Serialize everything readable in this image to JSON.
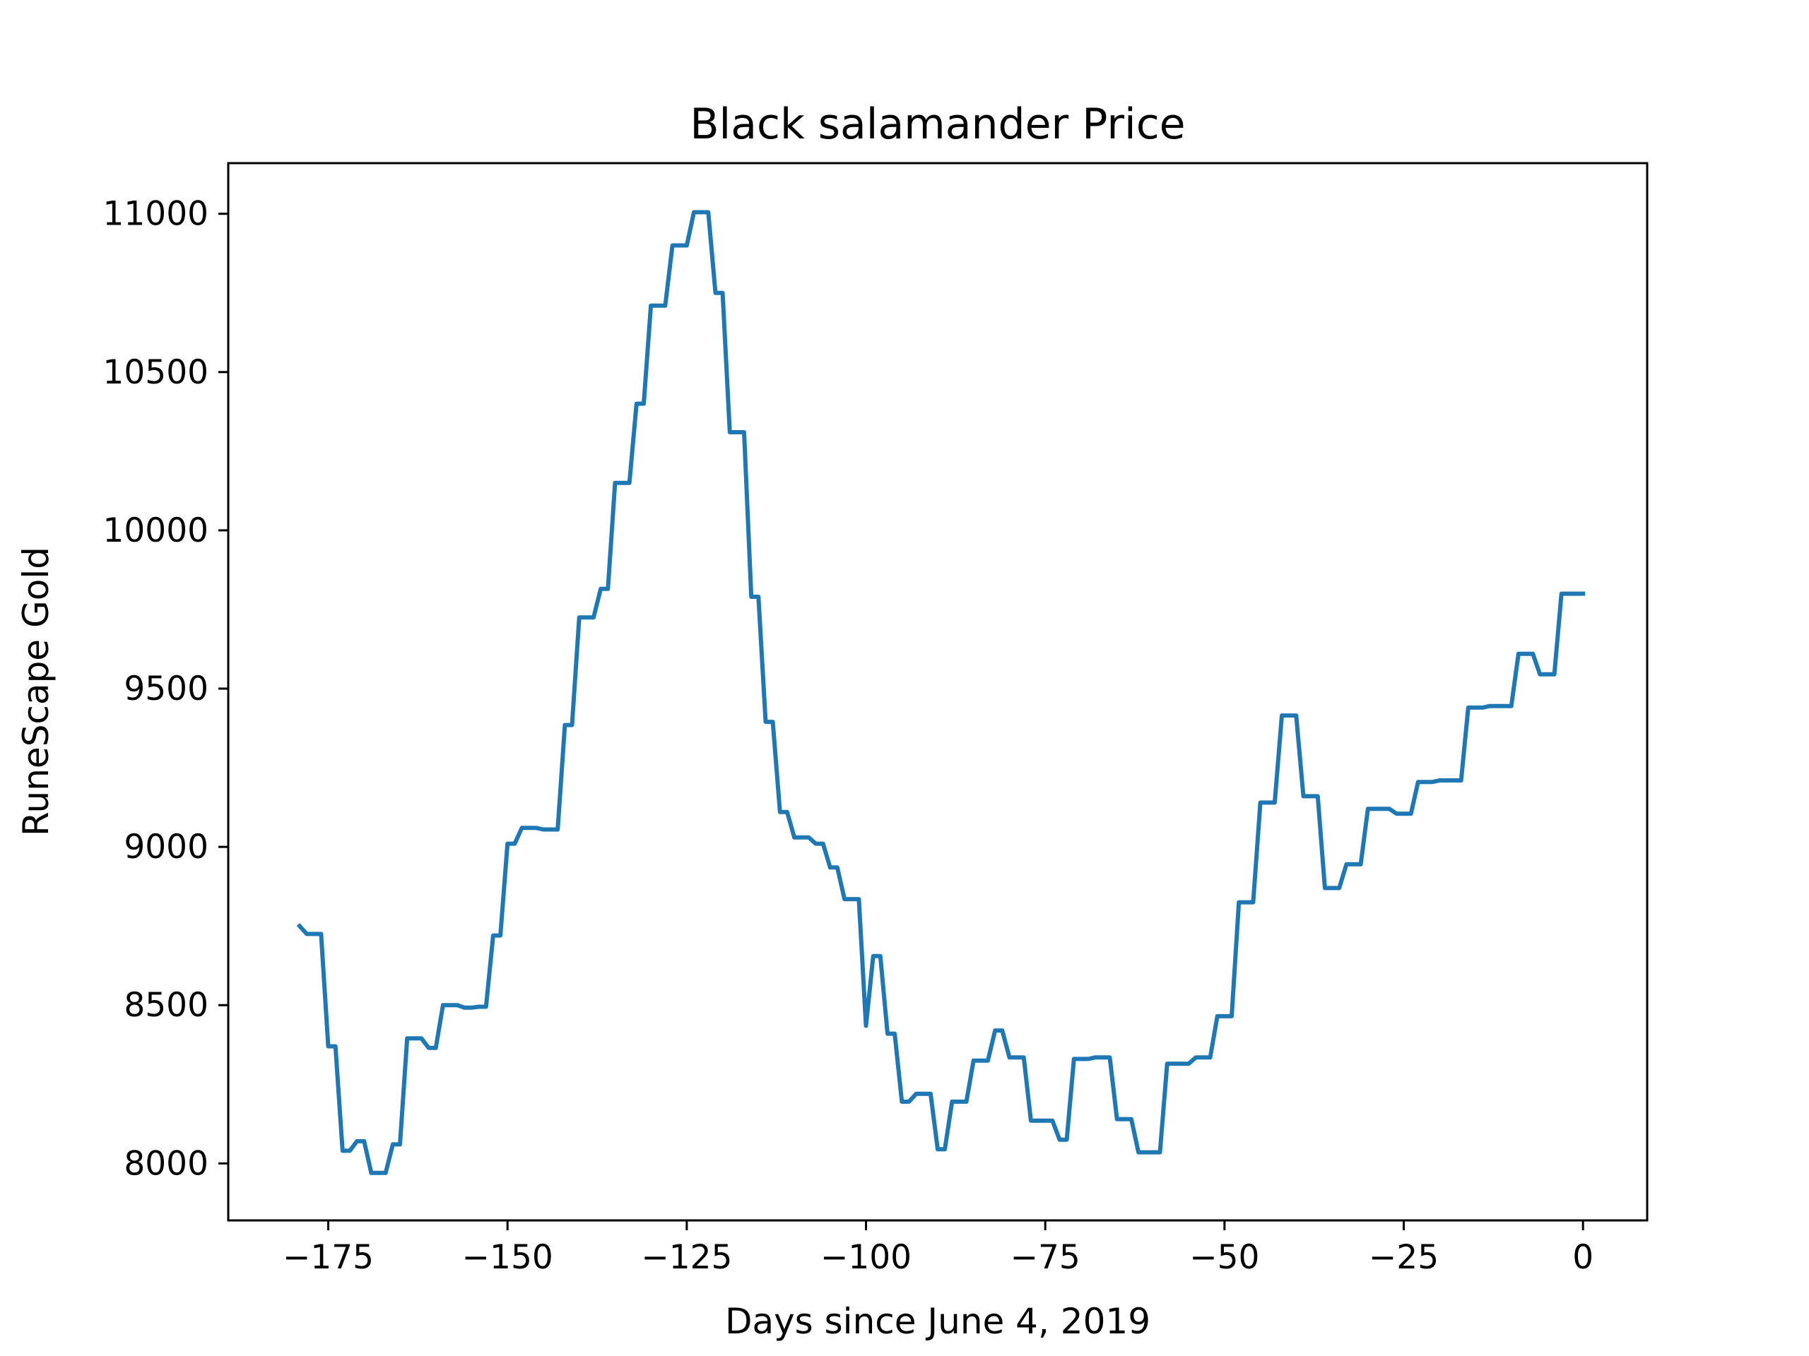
{
  "colors": {
    "line": "#1f77b4",
    "axes": "#000000",
    "background": "#ffffff"
  },
  "chart_data": {
    "type": "line",
    "title": "Black salamander Price",
    "xlabel": "Days since June 4, 2019",
    "ylabel": "RuneScape Gold",
    "xlim": [
      -188.95,
      8.95
    ],
    "ylim": [
      7820,
      11160
    ],
    "xticks": [
      -175,
      -150,
      -125,
      -100,
      -75,
      -50,
      -25,
      0
    ],
    "xtick_labels": [
      "−175",
      "−150",
      "−125",
      "−100",
      "−75",
      "−50",
      "−25",
      "0"
    ],
    "yticks": [
      8000,
      8500,
      9000,
      9500,
      10000,
      10500,
      11000
    ],
    "ytick_labels": [
      "8000",
      "8500",
      "9000",
      "9500",
      "10000",
      "10500",
      "11000"
    ],
    "grid": false,
    "legend": "none",
    "series": [
      {
        "x": [
          -179,
          -178,
          -177,
          -176,
          -175,
          -174,
          -173,
          -172,
          -171,
          -170,
          -169,
          -168,
          -167,
          -166,
          -165,
          -164,
          -163,
          -162,
          -161,
          -160,
          -159,
          -158,
          -157,
          -156,
          -155,
          -154,
          -153,
          -152,
          -151,
          -150,
          -149,
          -148,
          -147,
          -146,
          -145,
          -144,
          -143,
          -142,
          -141,
          -140,
          -139,
          -138,
          -137,
          -136,
          -135,
          -134,
          -133,
          -132,
          -131,
          -130,
          -129,
          -128,
          -127,
          -126,
          -125,
          -124,
          -123,
          -122,
          -121,
          -120,
          -119,
          -118,
          -117,
          -116,
          -115,
          -114,
          -113,
          -112,
          -111,
          -110,
          -109,
          -108,
          -107,
          -106,
          -105,
          -104,
          -103,
          -102,
          -101,
          -100,
          -99,
          -98,
          -97,
          -96,
          -95,
          -94,
          -93,
          -92,
          -91,
          -90,
          -89,
          -88,
          -87,
          -86,
          -85,
          -84,
          -83,
          -82,
          -81,
          -80,
          -79,
          -78,
          -77,
          -76,
          -75,
          -74,
          -73,
          -72,
          -71,
          -70,
          -69,
          -68,
          -67,
          -66,
          -65,
          -64,
          -63,
          -62,
          -61,
          -60,
          -59,
          -58,
          -57,
          -56,
          -55,
          -54,
          -53,
          -52,
          -51,
          -50,
          -49,
          -48,
          -47,
          -46,
          -45,
          -44,
          -43,
          -42,
          -41,
          -40,
          -39,
          -38,
          -37,
          -36,
          -35,
          -34,
          -33,
          -32,
          -31,
          -30,
          -29,
          -28,
          -27,
          -26,
          -25,
          -24,
          -23,
          -22,
          -21,
          -20,
          -19,
          -18,
          -17,
          -16,
          -15,
          -14,
          -13,
          -12,
          -11,
          -10,
          -9,
          -8,
          -7,
          -6,
          -5,
          -4,
          -3,
          -2,
          -1,
          0
        ],
        "values": [
          8750,
          8725,
          8725,
          8725,
          8370,
          8370,
          8040,
          8040,
          8070,
          8070,
          7970,
          7970,
          7970,
          8060,
          8060,
          8395,
          8395,
          8395,
          8365,
          8365,
          8500,
          8500,
          8500,
          8492,
          8492,
          8495,
          8495,
          8720,
          8720,
          9010,
          9010,
          9060,
          9060,
          9060,
          9055,
          9055,
          9055,
          9385,
          9385,
          9725,
          9725,
          9725,
          9815,
          9815,
          10150,
          10150,
          10150,
          10400,
          10400,
          10710,
          10710,
          10710,
          10900,
          10900,
          10900,
          11005,
          11005,
          11005,
          10750,
          10750,
          10310,
          10310,
          10310,
          9790,
          9790,
          9395,
          9395,
          9110,
          9110,
          9030,
          9030,
          9030,
          9010,
          9010,
          8935,
          8935,
          8835,
          8835,
          8835,
          8435,
          8655,
          8655,
          8410,
          8410,
          8195,
          8195,
          8220,
          8220,
          8220,
          8045,
          8045,
          8195,
          8195,
          8195,
          8325,
          8325,
          8325,
          8420,
          8420,
          8335,
          8335,
          8335,
          8135,
          8135,
          8135,
          8135,
          8075,
          8075,
          8330,
          8330,
          8330,
          8335,
          8335,
          8335,
          8140,
          8140,
          8140,
          8035,
          8035,
          8035,
          8035,
          8315,
          8315,
          8315,
          8315,
          8335,
          8335,
          8335,
          8465,
          8465,
          8465,
          8825,
          8825,
          8825,
          9140,
          9140,
          9140,
          9415,
          9415,
          9415,
          9160,
          9160,
          9160,
          8870,
          8870,
          8870,
          8945,
          8945,
          8945,
          9120,
          9120,
          9120,
          9120,
          9105,
          9105,
          9105,
          9205,
          9205,
          9205,
          9210,
          9210,
          9210,
          9210,
          9440,
          9440,
          9440,
          9445,
          9445,
          9445,
          9445,
          9610,
          9610,
          9610,
          9545,
          9545,
          9545,
          9800,
          9800,
          9800,
          9800
        ]
      }
    ]
  }
}
